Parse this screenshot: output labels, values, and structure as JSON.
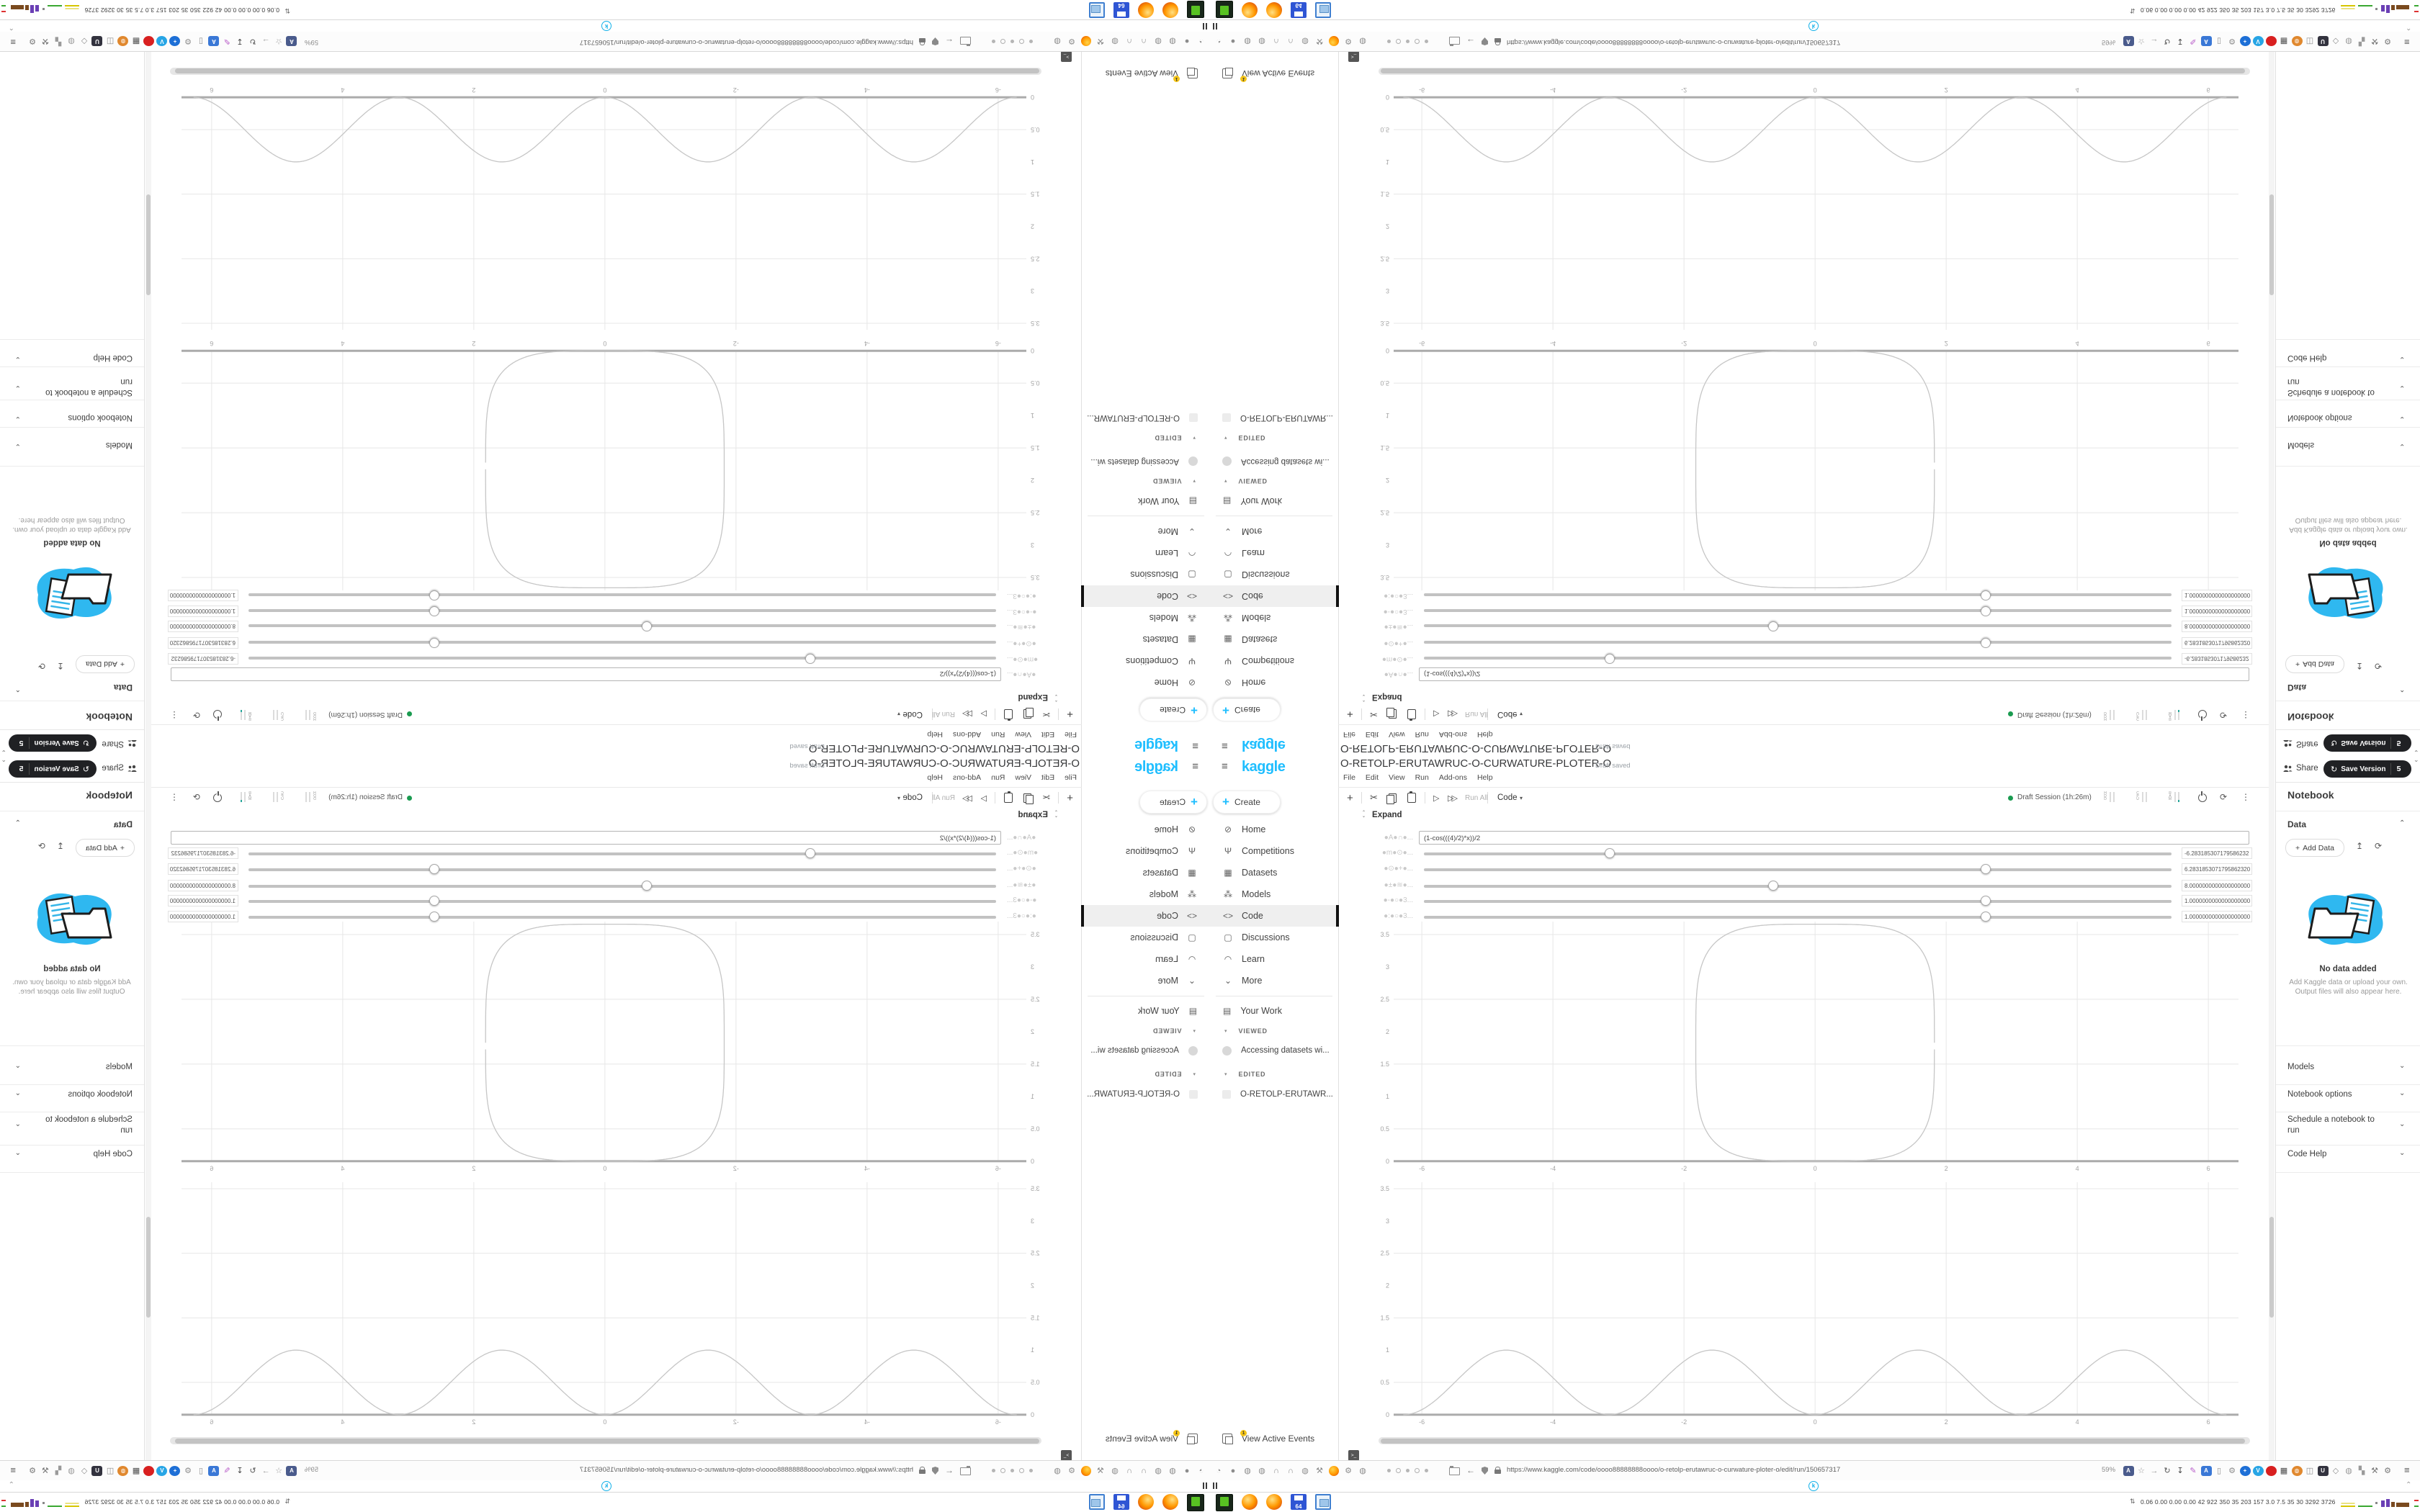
{
  "branding": {
    "logo_text": "kaggle",
    "accent_color": "#1FBEFF"
  },
  "sidebar": {
    "create_label": "Create",
    "items": [
      {
        "icon": "compass",
        "label": "Home",
        "active": false
      },
      {
        "icon": "trophy",
        "label": "Competitions",
        "active": false
      },
      {
        "icon": "grid",
        "label": "Datasets",
        "active": false
      },
      {
        "icon": "model",
        "label": "Models",
        "active": false
      },
      {
        "icon": "code",
        "label": "Code",
        "active": true
      },
      {
        "icon": "discussion",
        "label": "Discussions",
        "active": false
      },
      {
        "icon": "learn",
        "label": "Learn",
        "active": false
      },
      {
        "icon": "chevron-down",
        "label": "More",
        "active": false
      }
    ],
    "your_work": "Your Work",
    "viewed_header": "VIEWED",
    "viewed_item": "Accessing datasets wi...",
    "edited_header": "EDITED",
    "edited_item": "O-RETOLP-ERUTAWR...",
    "view_active_events": "View Active Events",
    "active_events_badge": "1"
  },
  "notebook": {
    "title": "O-RETOLP-ERUTAWRUC-O-CURWATURE-PLOTER-O",
    "save_status": "Draft saved",
    "menus": [
      "File",
      "Edit",
      "View",
      "Run",
      "Add-ons",
      "Help"
    ],
    "toolbar": {
      "run_all_label": "Run All",
      "cell_type_label": "Code"
    },
    "session": {
      "status_label": "Draft Session (1h:26m)",
      "status_color": "#1a9b50",
      "gauges": [
        "HDD",
        "CPU",
        "RAM"
      ]
    },
    "expand_label": "Expand"
  },
  "widgets": {
    "formula": {
      "label": "●A●∩●...",
      "value": "(1-cos(((4)/2)*x))/2"
    },
    "sliders": [
      {
        "label": "●m●⊙●...",
        "fraction": 0.248,
        "value": "-6.283185307179586232"
      },
      {
        "label": "●⊙●+●...",
        "fraction": 0.751,
        "value": "6.2831853071795862320"
      },
      {
        "label": "●±●≋●...",
        "fraction": 0.467,
        "value": "8.0000000000000000000"
      },
      {
        "label": "●-●○●3...",
        "fraction": 0.751,
        "value": "1.0000000000000000000"
      },
      {
        "label": "●:●○●3...",
        "fraction": 0.751,
        "value": "1.0000000000000000000"
      }
    ]
  },
  "chart_data": [
    {
      "type": "line",
      "title": "",
      "xlabel": "",
      "ylabel": "",
      "xlim": [
        -6.43,
        6.46
      ],
      "ylim": [
        -0.08,
        3.7
      ],
      "x_ticks": [
        -6,
        -4,
        -2,
        0,
        2,
        4,
        6
      ],
      "y_tick_labels": [
        0,
        0.5,
        1,
        1.5,
        2,
        2.5,
        3,
        3.5
      ],
      "y_gridlines": [
        0.5,
        1.5,
        2.5,
        3.5
      ],
      "grid": true,
      "legend": false,
      "series": [
        {
          "name": "closed curvature curve (rounded-rectangle superellipse)",
          "kind": "superellipse",
          "cx": 0,
          "cy": 1.83,
          "rx": 1.82,
          "ry": 1.83,
          "exponent": 4,
          "extent_note": "spans x -1.82..1.82, y 0..3.66, flat top and bottom",
          "color": "#c6c6c6"
        }
      ]
    },
    {
      "type": "line",
      "title": "",
      "xlabel": "",
      "ylabel": "",
      "xlim": [
        -6.43,
        6.46
      ],
      "ylim": [
        -0.08,
        3.6
      ],
      "x_ticks": [
        -6,
        -4,
        -2,
        0,
        2,
        4,
        6
      ],
      "y_tick_labels": [
        0,
        0.5,
        1,
        1.5,
        2,
        2.5,
        3,
        3.5
      ],
      "y_gridlines": [
        0.5,
        1.5,
        2.5,
        3.5
      ],
      "grid": true,
      "legend": false,
      "series": [
        {
          "name": "sin^2(x) = (1-cos(2x))/2",
          "kind": "sin_squared",
          "formula": "(1-cos(2x))/2",
          "x_range": [
            -6.2832,
            6.2832
          ],
          "peaks_x": [
            -4.712,
            -1.571,
            1.571,
            4.712
          ],
          "peak_y": 1,
          "zeros_x": [
            -6.283,
            -3.1416,
            0,
            3.1416,
            6.283
          ],
          "color": "#c6c6c6"
        }
      ]
    }
  ],
  "right_panel": {
    "share_label": "Share",
    "save_version_label": "Save Version",
    "version_count": "5",
    "panel_title": "Notebook",
    "data_section": {
      "header": "Data",
      "add_data_label": "Add Data",
      "empty_title": "No data added",
      "empty_caption": "Add Kaggle data or upload your own. Output files will also appear here."
    },
    "collapsed_sections": [
      "Models",
      "Notebook options",
      "Schedule a notebook to run",
      "Code Help"
    ]
  },
  "browser": {
    "url": "https://www.kaggle.com/code/oooo88888888oooo/o-retolp-erutawruc-o-curwature-ploter-o/edit/run/150657317",
    "zoom_level": "59%",
    "left_icons": [
      {
        "name": "pin",
        "glyph": "◔",
        "color": "#8c8c8c"
      },
      {
        "name": "record",
        "glyph": "●",
        "color": "#8c8c8c"
      },
      {
        "name": "globe",
        "glyph": "◍",
        "color": "#8c8c8c"
      },
      {
        "name": "globe",
        "glyph": "◍",
        "color": "#8c8c8c"
      },
      {
        "name": "headset",
        "glyph": "∩",
        "color": "#8c8c8c"
      },
      {
        "name": "headset",
        "glyph": "∩",
        "color": "#8c8c8c"
      },
      {
        "name": "globe",
        "glyph": "◍",
        "color": "#8c8c8c"
      },
      {
        "name": "wrench",
        "glyph": "⚒",
        "color": "#8c8c8c"
      },
      {
        "name": "firefox",
        "firefox": true
      },
      {
        "name": "gear",
        "glyph": "⚙",
        "color": "#8c8c8c"
      },
      {
        "name": "globe",
        "glyph": "◍",
        "color": "#8c8c8c"
      }
    ],
    "right_icons": [
      {
        "name": "translate",
        "glyph": "A",
        "bg": "#4a5b8c",
        "square": true
      },
      {
        "name": "bookmark-star",
        "glyph": "☆",
        "color": "#999"
      },
      {
        "name": "forward",
        "glyph": "→",
        "color": "#999"
      },
      {
        "name": "reload",
        "glyph": "↻",
        "color": "#555"
      },
      {
        "name": "download",
        "glyph": "↧",
        "color": "#444"
      },
      {
        "name": "pen",
        "glyph": "✎",
        "color": "#b85cc9"
      },
      {
        "name": "translate-2",
        "glyph": "A",
        "bg": "#3a78d6",
        "square": true
      },
      {
        "name": "mouse",
        "glyph": "▯",
        "color": "#8c8c8c"
      },
      {
        "name": "gear",
        "glyph": "⚙",
        "color": "#8c8c8c"
      },
      {
        "name": "plus",
        "glyph": "+",
        "bg": "#1d6fd6"
      },
      {
        "name": "vpn",
        "glyph": "V",
        "bg": "#27a5e5"
      },
      {
        "name": "recorder",
        "glyph": "",
        "bg": "#d81f1f"
      },
      {
        "name": "trash",
        "glyph": "▦",
        "color": "#4a4a4a"
      },
      {
        "name": "globe-orange",
        "glyph": "◍",
        "bg": "#e0882e"
      },
      {
        "name": "box",
        "glyph": "◫",
        "color": "#8c8c8c"
      },
      {
        "name": "uo-blocker",
        "glyph": "U",
        "bg": "#32323e",
        "square": true
      },
      {
        "name": "shield",
        "glyph": "◇",
        "color": "#8c8c8c"
      },
      {
        "name": "globe-gray",
        "glyph": "◍",
        "color": "#9a9a9a"
      },
      {
        "name": "puzzle",
        "glyph": "▚",
        "color": "#9a9a9a"
      },
      {
        "name": "wrench",
        "glyph": "⚒",
        "color": "#777"
      },
      {
        "name": "gear-2",
        "glyph": "⚙",
        "color": "#777"
      }
    ],
    "taskbar_apps": [
      {
        "name": "terminal-app",
        "cls": "a-term"
      },
      {
        "name": "firefox-app",
        "cls": "a-ffx"
      },
      {
        "name": "firefox-app-2",
        "cls": "a-ffx"
      },
      {
        "name": "floppy64-app",
        "cls": "a-floppy",
        "label": "64"
      },
      {
        "name": "image-viewer-app",
        "cls": "a-img"
      }
    ],
    "monitor": {
      "text": "0.06 0.00 0.00 0.00  42  922  350  35  203  157  3.0  7.5  35  30  3292 3726"
    },
    "kaggle_favicon": "k"
  },
  "icons": {
    "compass": "⊘",
    "trophy": "Ψ",
    "grid": "▦",
    "model": "⁂",
    "code": "<>",
    "discussion": "▢",
    "learn": "◠",
    "chevron-down": "⌄",
    "clipboard": "▤",
    "triangle-down": "▾"
  }
}
